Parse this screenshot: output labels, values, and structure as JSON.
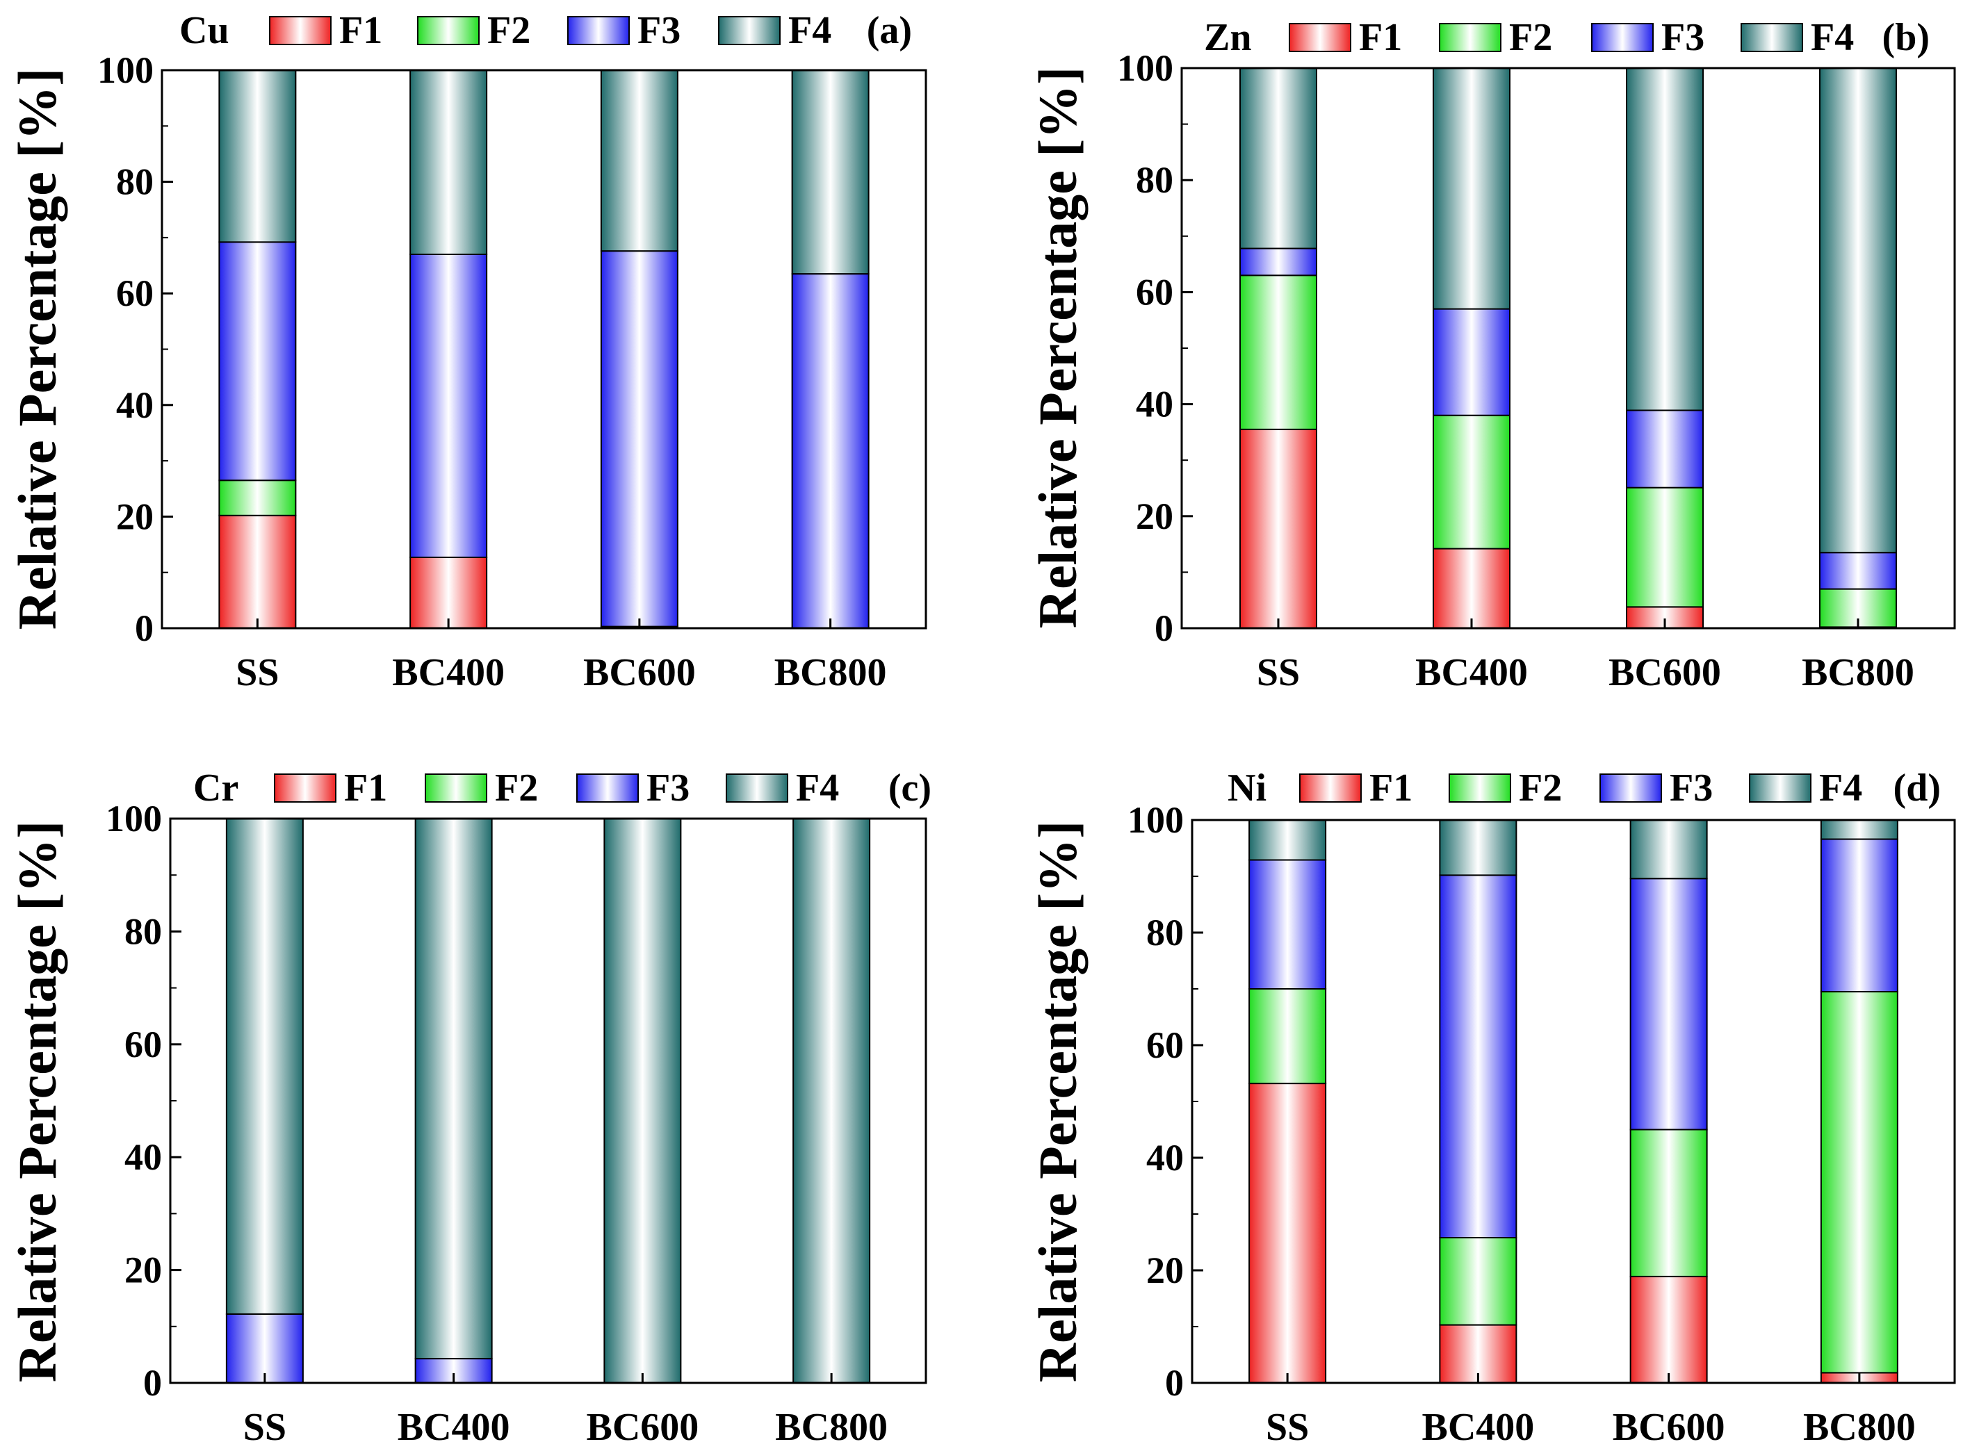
{
  "colors": {
    "F1": "#ee2222",
    "F2": "#22dd22",
    "F3": "#2222ee",
    "F4": "#1f6b6b"
  },
  "chart_data": [
    {
      "type": "bar",
      "stacked": true,
      "panel": "(a)",
      "element": "Cu",
      "ylabel": "Relative Percentage [%]",
      "ylim": [
        0,
        100
      ],
      "yticks": [
        0,
        20,
        40,
        60,
        80,
        100
      ],
      "categories": [
        "SS",
        "BC400",
        "BC600",
        "BC800"
      ],
      "series": [
        {
          "name": "F1",
          "values": [
            20.2,
            12.7,
            0.3,
            0
          ]
        },
        {
          "name": "F2",
          "values": [
            6.3,
            0,
            0,
            0
          ]
        },
        {
          "name": "F3",
          "values": [
            42.7,
            54.3,
            67.3,
            63.5
          ]
        },
        {
          "name": "F4",
          "values": [
            30.8,
            33.0,
            32.4,
            36.5
          ]
        }
      ]
    },
    {
      "type": "bar",
      "stacked": true,
      "panel": "(b)",
      "element": "Zn",
      "ylabel": "Relative Percentage [%]",
      "ylim": [
        0,
        100
      ],
      "yticks": [
        0,
        20,
        40,
        60,
        80,
        100
      ],
      "categories": [
        "SS",
        "BC400",
        "BC600",
        "BC800"
      ],
      "series": [
        {
          "name": "F1",
          "values": [
            35.5,
            14.2,
            3.8,
            0.2
          ]
        },
        {
          "name": "F2",
          "values": [
            27.5,
            23.8,
            21.3,
            6.8
          ]
        },
        {
          "name": "F3",
          "values": [
            4.8,
            19.0,
            13.8,
            6.5
          ]
        },
        {
          "name": "F4",
          "values": [
            32.2,
            43.0,
            61.1,
            86.5
          ]
        }
      ]
    },
    {
      "type": "bar",
      "stacked": true,
      "panel": "(c)",
      "element": "Cr",
      "ylabel": "Relative Percentage [%]",
      "ylim": [
        0,
        100
      ],
      "yticks": [
        0,
        20,
        40,
        60,
        80,
        100
      ],
      "categories": [
        "SS",
        "BC400",
        "BC600",
        "BC800"
      ],
      "series": [
        {
          "name": "F1",
          "values": [
            0,
            0,
            0,
            0
          ]
        },
        {
          "name": "F2",
          "values": [
            0,
            0,
            0,
            0
          ]
        },
        {
          "name": "F3",
          "values": [
            12.2,
            4.3,
            0,
            0
          ]
        },
        {
          "name": "F4",
          "values": [
            87.8,
            95.7,
            100,
            100
          ]
        }
      ]
    },
    {
      "type": "bar",
      "stacked": true,
      "panel": "(d)",
      "element": "Ni",
      "ylabel": "Relative Percentage [%]",
      "ylim": [
        0,
        100
      ],
      "yticks": [
        0,
        20,
        40,
        60,
        80,
        100
      ],
      "categories": [
        "SS",
        "BC400",
        "BC600",
        "BC800"
      ],
      "series": [
        {
          "name": "F1",
          "values": [
            53.2,
            10.3,
            18.9,
            1.8
          ]
        },
        {
          "name": "F2",
          "values": [
            16.8,
            15.5,
            26.1,
            67.7
          ]
        },
        {
          "name": "F3",
          "values": [
            22.9,
            64.4,
            44.6,
            27.1
          ]
        },
        {
          "name": "F4",
          "values": [
            7.1,
            9.8,
            10.4,
            3.4
          ]
        }
      ]
    }
  ]
}
